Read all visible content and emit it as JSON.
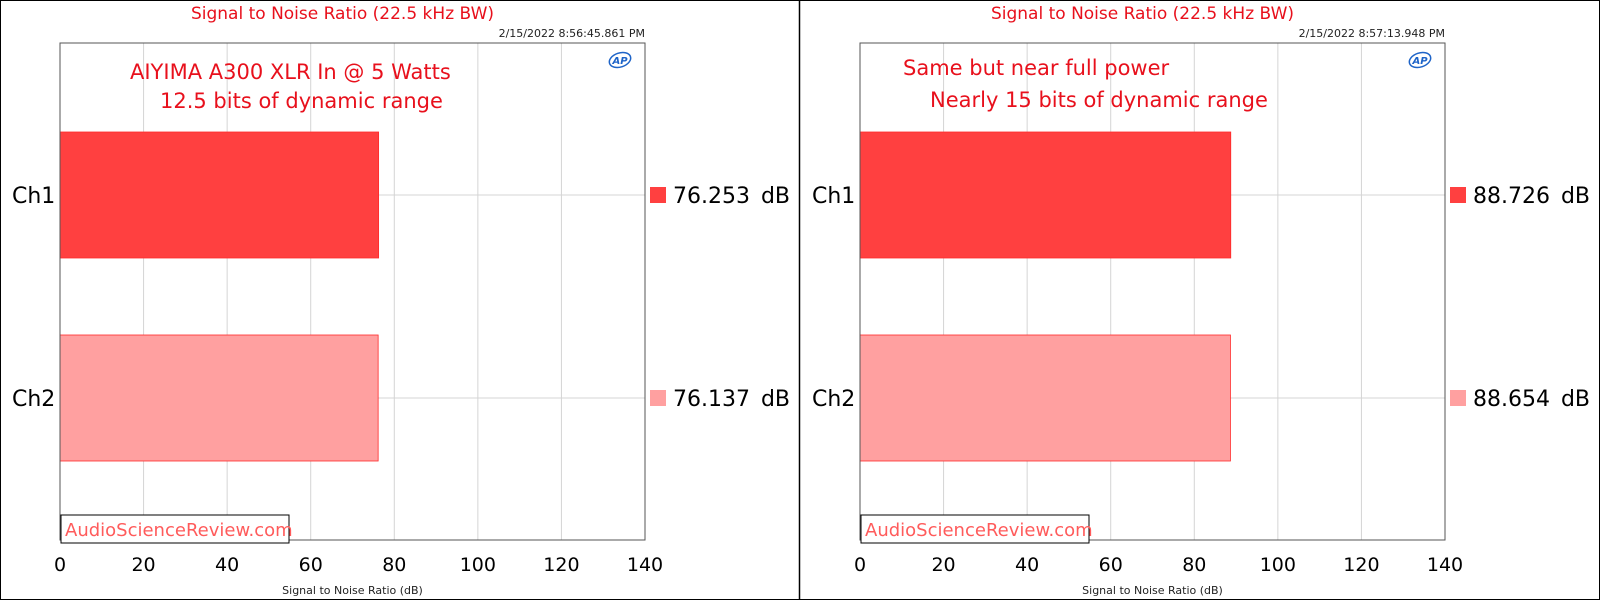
{
  "chart_data": [
    {
      "type": "bar",
      "orientation": "horizontal",
      "title": "Signal to Noise Ratio (22.5 kHz BW)",
      "timestamp": "2/15/2022 8:56:45.861 PM",
      "xlabel": "Signal to Noise Ratio (dB)",
      "xlim": [
        0,
        140
      ],
      "xticks": [
        "0",
        "20",
        "40",
        "60",
        "80",
        "100",
        "120",
        "140"
      ],
      "grid": true,
      "categories": [
        "Ch1",
        "Ch2"
      ],
      "values": [
        76.253,
        76.137
      ],
      "value_labels": [
        "76.253",
        "76.137"
      ],
      "unit": "dB",
      "colors": [
        "#ff4040",
        "#ffa0a0"
      ],
      "annotations": [
        "AIYIMA A300 XLR In @ 5 Watts",
        "12.5 bits of dynamic range"
      ],
      "watermark": "AudioScienceReview.com",
      "logo": "AP"
    },
    {
      "type": "bar",
      "orientation": "horizontal",
      "title": "Signal to Noise Ratio (22.5 kHz BW)",
      "timestamp": "2/15/2022 8:57:13.948 PM",
      "xlabel": "Signal to Noise Ratio (dB)",
      "xlim": [
        0,
        140
      ],
      "xticks": [
        "0",
        "20",
        "40",
        "60",
        "80",
        "100",
        "120",
        "140"
      ],
      "grid": true,
      "categories": [
        "Ch1",
        "Ch2"
      ],
      "values": [
        88.726,
        88.654
      ],
      "value_labels": [
        "88.726",
        "88.654"
      ],
      "unit": "dB",
      "colors": [
        "#ff4040",
        "#ffa0a0"
      ],
      "annotations": [
        "Same but near full power",
        "Nearly 15 bits of dynamic range"
      ],
      "watermark": "AudioScienceReview.com",
      "logo": "AP"
    }
  ]
}
